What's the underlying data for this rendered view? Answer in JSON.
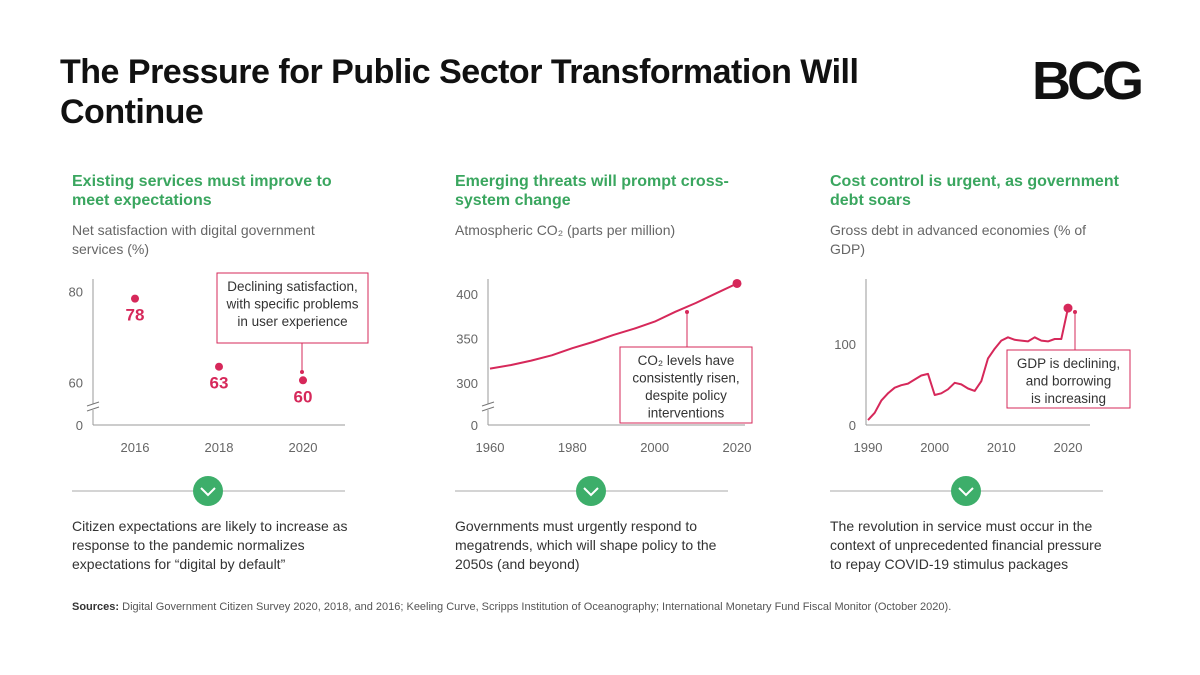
{
  "title": "The Pressure for Public Sector Transformation Will Continue",
  "logo": "BCG",
  "sources_label": "Sources:",
  "sources": "Digital Government Citizen Survey 2020, 2018, and 2016; Keeling Curve, Scripps Institution of Oceanography; International Monetary Fund Fiscal Monitor (October 2020).",
  "chart_data": [
    {
      "type": "dot",
      "heading": "Existing services must improve to meet expectations",
      "subtitle": "Net satisfaction with digital government services (%)",
      "categories": [
        "2016",
        "2018",
        "2020"
      ],
      "values": [
        78,
        63,
        60
      ],
      "color": "#d6285a",
      "ylim": [
        0,
        81
      ],
      "yticks": [
        0,
        60,
        80
      ],
      "axis_break": [
        0,
        55
      ],
      "annotation": [
        "Declining satisfaction,",
        "with specific problems",
        "in user experience"
      ],
      "takeaway": "Citizen expectations are likely to increase as response to the pandemic normalizes expectations for “digital by default”"
    },
    {
      "type": "line",
      "heading": "Emerging threats will prompt cross-system change",
      "subtitle": "Atmospheric CO₂ (parts per million)",
      "x": [
        1960,
        1965,
        1970,
        1975,
        1980,
        1985,
        1990,
        1995,
        2000,
        2005,
        2010,
        2015,
        2020
      ],
      "values": [
        316,
        320,
        325,
        331,
        339,
        346,
        354,
        361,
        369,
        380,
        390,
        401,
        412
      ],
      "color": "#d6285a",
      "xlim": [
        1960,
        2020
      ],
      "xticks": [
        1960,
        1980,
        2000,
        2020
      ],
      "ylim": [
        0,
        408
      ],
      "yticks": [
        0,
        300,
        350,
        400
      ],
      "axis_break": [
        0,
        275
      ],
      "annotation": [
        "CO₂ levels have",
        "consistently risen,",
        "despite policy",
        "interventions"
      ],
      "takeaway": "Governments must urgently respond to megatrends, which will shape policy to the 2050s (and beyond)"
    },
    {
      "type": "line",
      "heading": "Cost control is urgent, as government debt soars",
      "subtitle": "Gross debt in advanced economies (% of GDP)",
      "x": [
        1990,
        1991,
        1992,
        1993,
        1994,
        1995,
        1996,
        1997,
        1998,
        1999,
        2000,
        2001,
        2002,
        2003,
        2004,
        2005,
        2006,
        2007,
        2008,
        2009,
        2010,
        2011,
        2012,
        2013,
        2014,
        2015,
        2016,
        2017,
        2018,
        2019,
        2020
      ],
      "values": [
        6,
        15,
        30,
        39,
        46,
        49,
        51,
        56,
        61,
        63,
        37,
        39,
        44,
        52,
        50,
        45,
        42,
        54,
        82,
        94,
        104,
        108,
        105,
        104,
        103,
        108,
        104,
        103,
        106,
        106,
        144
      ],
      "color": "#d6285a",
      "xlim": [
        1990,
        2020
      ],
      "xticks": [
        1990,
        2000,
        2010,
        2020
      ],
      "ylim": [
        0,
        170
      ],
      "yticks": [
        0,
        100
      ],
      "annotation": [
        "GDP is declining,",
        "and borrowing",
        "is increasing"
      ],
      "takeaway": "The revolution in service must occur in the context of unprecedented financial pressure to repay COVID-19 stimulus packages"
    }
  ]
}
